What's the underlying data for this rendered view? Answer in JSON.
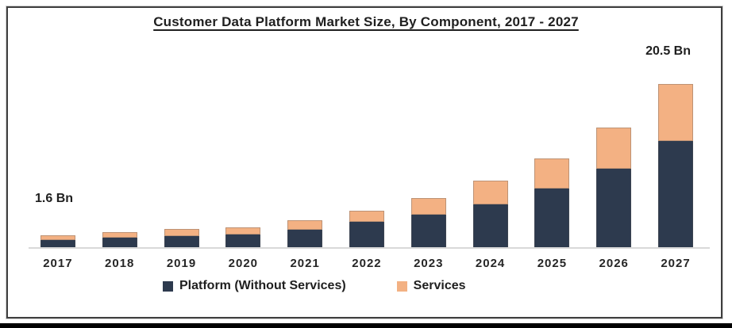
{
  "title": "Customer Data Platform Market Size, By Component, 2017 - 2027",
  "annotations": {
    "start_value": "1.6 Bn",
    "end_value": "20.5 Bn"
  },
  "colors": {
    "platform": "#2d3a4e",
    "services": "#f3b183",
    "axis_line": "#d9d9d9",
    "frame_border": "#3f3f3f",
    "text": "#1f1f1f"
  },
  "chart_data": {
    "type": "bar",
    "stacked": true,
    "title": "Customer Data Platform Market Size, By Component, 2017 - 2027",
    "unit": "Bn",
    "categories": [
      "2017",
      "2018",
      "2019",
      "2020",
      "2021",
      "2022",
      "2023",
      "2024",
      "2025",
      "2026",
      "2027"
    ],
    "series": [
      {
        "name": "Platform (Without Services)",
        "color": "#2d3a4e",
        "values": [
          1.0,
          1.3,
          1.5,
          1.7,
          2.3,
          3.3,
          4.2,
          5.5,
          7.4,
          9.9,
          13.4
        ]
      },
      {
        "name": "Services",
        "color": "#f3b183",
        "values": [
          0.6,
          0.7,
          0.9,
          0.9,
          1.2,
          1.4,
          2.1,
          2.9,
          3.8,
          5.2,
          7.1
        ]
      }
    ],
    "totals": [
      1.6,
      2.0,
      2.4,
      2.6,
      3.5,
      4.7,
      6.3,
      8.4,
      11.2,
      15.1,
      20.5
    ],
    "annotations": [
      {
        "category": "2017",
        "text": "1.6 Bn"
      },
      {
        "category": "2027",
        "text": "20.5 Bn"
      }
    ],
    "ylim": [
      0,
      20.5
    ],
    "xlabel": "",
    "ylabel": "",
    "grid": false,
    "y_axis_visible": false,
    "legend_position": "bottom"
  }
}
